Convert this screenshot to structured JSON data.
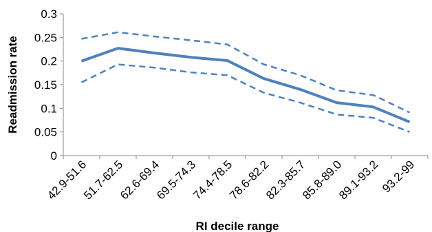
{
  "chart_data": {
    "type": "line",
    "title": "",
    "xlabel": "RI decile range",
    "ylabel": "Readmission rate",
    "categories": [
      "42.9-51.6",
      "51.7-62.5",
      "62.6-69.4",
      "69.5-74.3",
      "74.4-78.5",
      "78.6-82.2",
      "82.3-85.7",
      "85.8-89.0",
      "89.1-93.2",
      "93.2-99"
    ],
    "y_ticks": [
      "0",
      "0.05",
      "0.1",
      "0.15",
      "0.2",
      "0.25",
      "0.3"
    ],
    "ylim": [
      0,
      0.3
    ],
    "grid": false,
    "legend": "none",
    "series": [
      {
        "style": "solid",
        "color": "#4F81BD",
        "values": [
          0.2,
          0.227,
          0.217,
          0.208,
          0.201,
          0.163,
          0.14,
          0.112,
          0.103,
          0.071
        ]
      },
      {
        "style": "dashed",
        "color": "#4F81BD",
        "values": [
          0.247,
          0.261,
          0.252,
          0.244,
          0.235,
          0.193,
          0.17,
          0.138,
          0.128,
          0.091
        ]
      },
      {
        "style": "dashed",
        "color": "#4F81BD",
        "values": [
          0.155,
          0.193,
          0.186,
          0.176,
          0.17,
          0.133,
          0.112,
          0.087,
          0.08,
          0.05
        ]
      }
    ]
  }
}
